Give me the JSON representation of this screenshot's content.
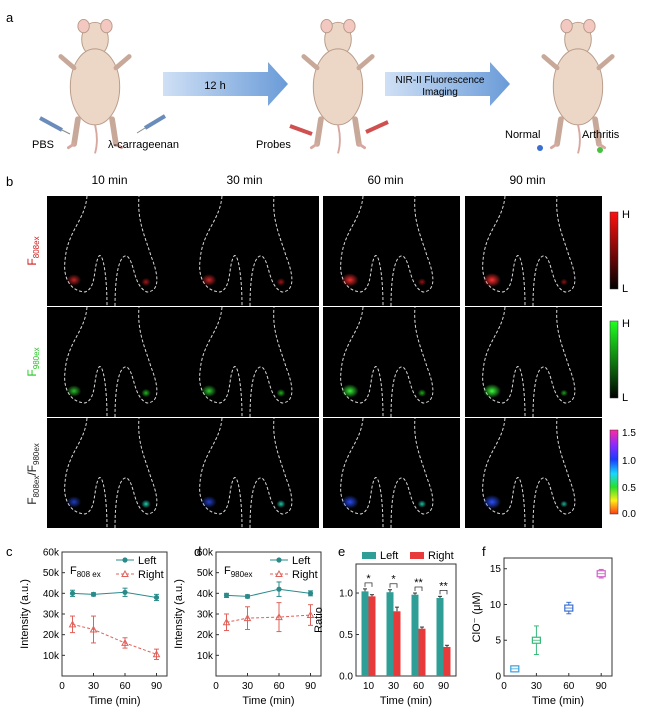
{
  "panel_letters": [
    "a",
    "b",
    "c",
    "d",
    "e",
    "f"
  ],
  "schematic": {
    "arrow1_text": "12 h",
    "arrow2_text_line1": "NIR-II Fluorescence",
    "arrow2_text_line2": "Imaging",
    "injection_left": "PBS",
    "injection_right": "λ-carrageenan",
    "probes": "Probes",
    "normal": "Normal",
    "arthritis": "Arthritis"
  },
  "imaging": {
    "columns": [
      "10 min",
      "30 min",
      "60 min",
      "90 min"
    ],
    "rows": [
      {
        "label_main": "F",
        "label_sub": "808ex",
        "color": "#d01818"
      },
      {
        "label_main": "F",
        "label_sub": "980ex",
        "color": "#1ec81e"
      },
      {
        "label_main": "F",
        "label_sub": "808ex",
        "label_mid": "/F",
        "label_sub2": "980ex",
        "color": "#222222"
      }
    ],
    "colorbar_red": {
      "high": "H",
      "low": "L"
    },
    "colorbar_green": {
      "high": "H",
      "low": "L"
    },
    "colorbar_ratio": {
      "ticks": [
        "1.5",
        "1.0",
        "0.5",
        "0.0"
      ]
    }
  },
  "chart_data": [
    {
      "panel": "c",
      "type": "line",
      "inset_main": "F",
      "inset_sub": "808 ex",
      "x": [
        10,
        30,
        60,
        90
      ],
      "series": [
        {
          "name": "Left",
          "values": [
            40000,
            39500,
            40500,
            38000
          ],
          "err": [
            1500,
            800,
            2000,
            1500
          ],
          "color": "#2a8a8a"
        },
        {
          "name": "Right",
          "values": [
            25000,
            22500,
            16000,
            10500
          ],
          "err": [
            4000,
            6500,
            2500,
            2500
          ],
          "color": "#e0605a"
        }
      ],
      "xlabel": "Time (min)",
      "ylabel": "Intensity (a.u.)",
      "xticks": [
        "0",
        "30",
        "60",
        "90"
      ],
      "yticks": [
        "10k",
        "20k",
        "30k",
        "40k",
        "50k",
        "60k"
      ],
      "xlim": [
        0,
        100
      ],
      "ylim": [
        0,
        60000
      ]
    },
    {
      "panel": "d",
      "type": "line",
      "inset_main": "F",
      "inset_sub": "980ex",
      "x": [
        10,
        30,
        60,
        90
      ],
      "series": [
        {
          "name": "Left",
          "values": [
            39000,
            38500,
            42000,
            40000
          ],
          "err": [
            1000,
            800,
            3500,
            1200
          ],
          "color": "#2a8a8a"
        },
        {
          "name": "Right",
          "values": [
            26000,
            28000,
            28500,
            29500
          ],
          "err": [
            4000,
            5500,
            7000,
            5000
          ],
          "color": "#e0605a"
        }
      ],
      "xlabel": "Time (min)",
      "ylabel": "Intensity (a.u.)",
      "xticks": [
        "0",
        "30",
        "60",
        "90"
      ],
      "yticks": [
        "10k",
        "20k",
        "30k",
        "40k",
        "50k",
        "60k"
      ],
      "xlim": [
        0,
        100
      ],
      "ylim": [
        0,
        60000
      ]
    },
    {
      "panel": "e",
      "type": "bar",
      "categories": [
        "10",
        "30",
        "60",
        "90"
      ],
      "series": [
        {
          "name": "Left",
          "values": [
            1.02,
            1.01,
            0.98,
            0.94
          ],
          "err": [
            0.03,
            0.03,
            0.02,
            0.02
          ],
          "color": "#2e9e96"
        },
        {
          "name": "Right",
          "values": [
            0.96,
            0.78,
            0.57,
            0.35
          ],
          "err": [
            0.02,
            0.05,
            0.02,
            0.02
          ],
          "color": "#e83a3a"
        }
      ],
      "significance": [
        "*",
        "*",
        "**",
        "**"
      ],
      "xlabel": "Time (min)",
      "ylabel": "Ratio",
      "yticks": [
        "0.0",
        "0.5",
        "1.0"
      ],
      "ylim": [
        0,
        1.35
      ]
    },
    {
      "panel": "f",
      "type": "scatter",
      "x": [
        10,
        30,
        60,
        90
      ],
      "values": [
        1,
        5,
        9.5,
        14.3
      ],
      "err": [
        0.4,
        2.0,
        0.8,
        0.6
      ],
      "colors": [
        "#3aa0d8",
        "#38b87a",
        "#3a6ed0",
        "#d060c8"
      ],
      "xlabel": "Time (min)",
      "ylabel": "ClO⁻ (μM)",
      "xticks": [
        "0",
        "30",
        "60",
        "90"
      ],
      "yticks": [
        "0",
        "5",
        "10",
        "15"
      ],
      "xlim": [
        0,
        100
      ],
      "ylim": [
        0,
        16.5
      ]
    }
  ]
}
